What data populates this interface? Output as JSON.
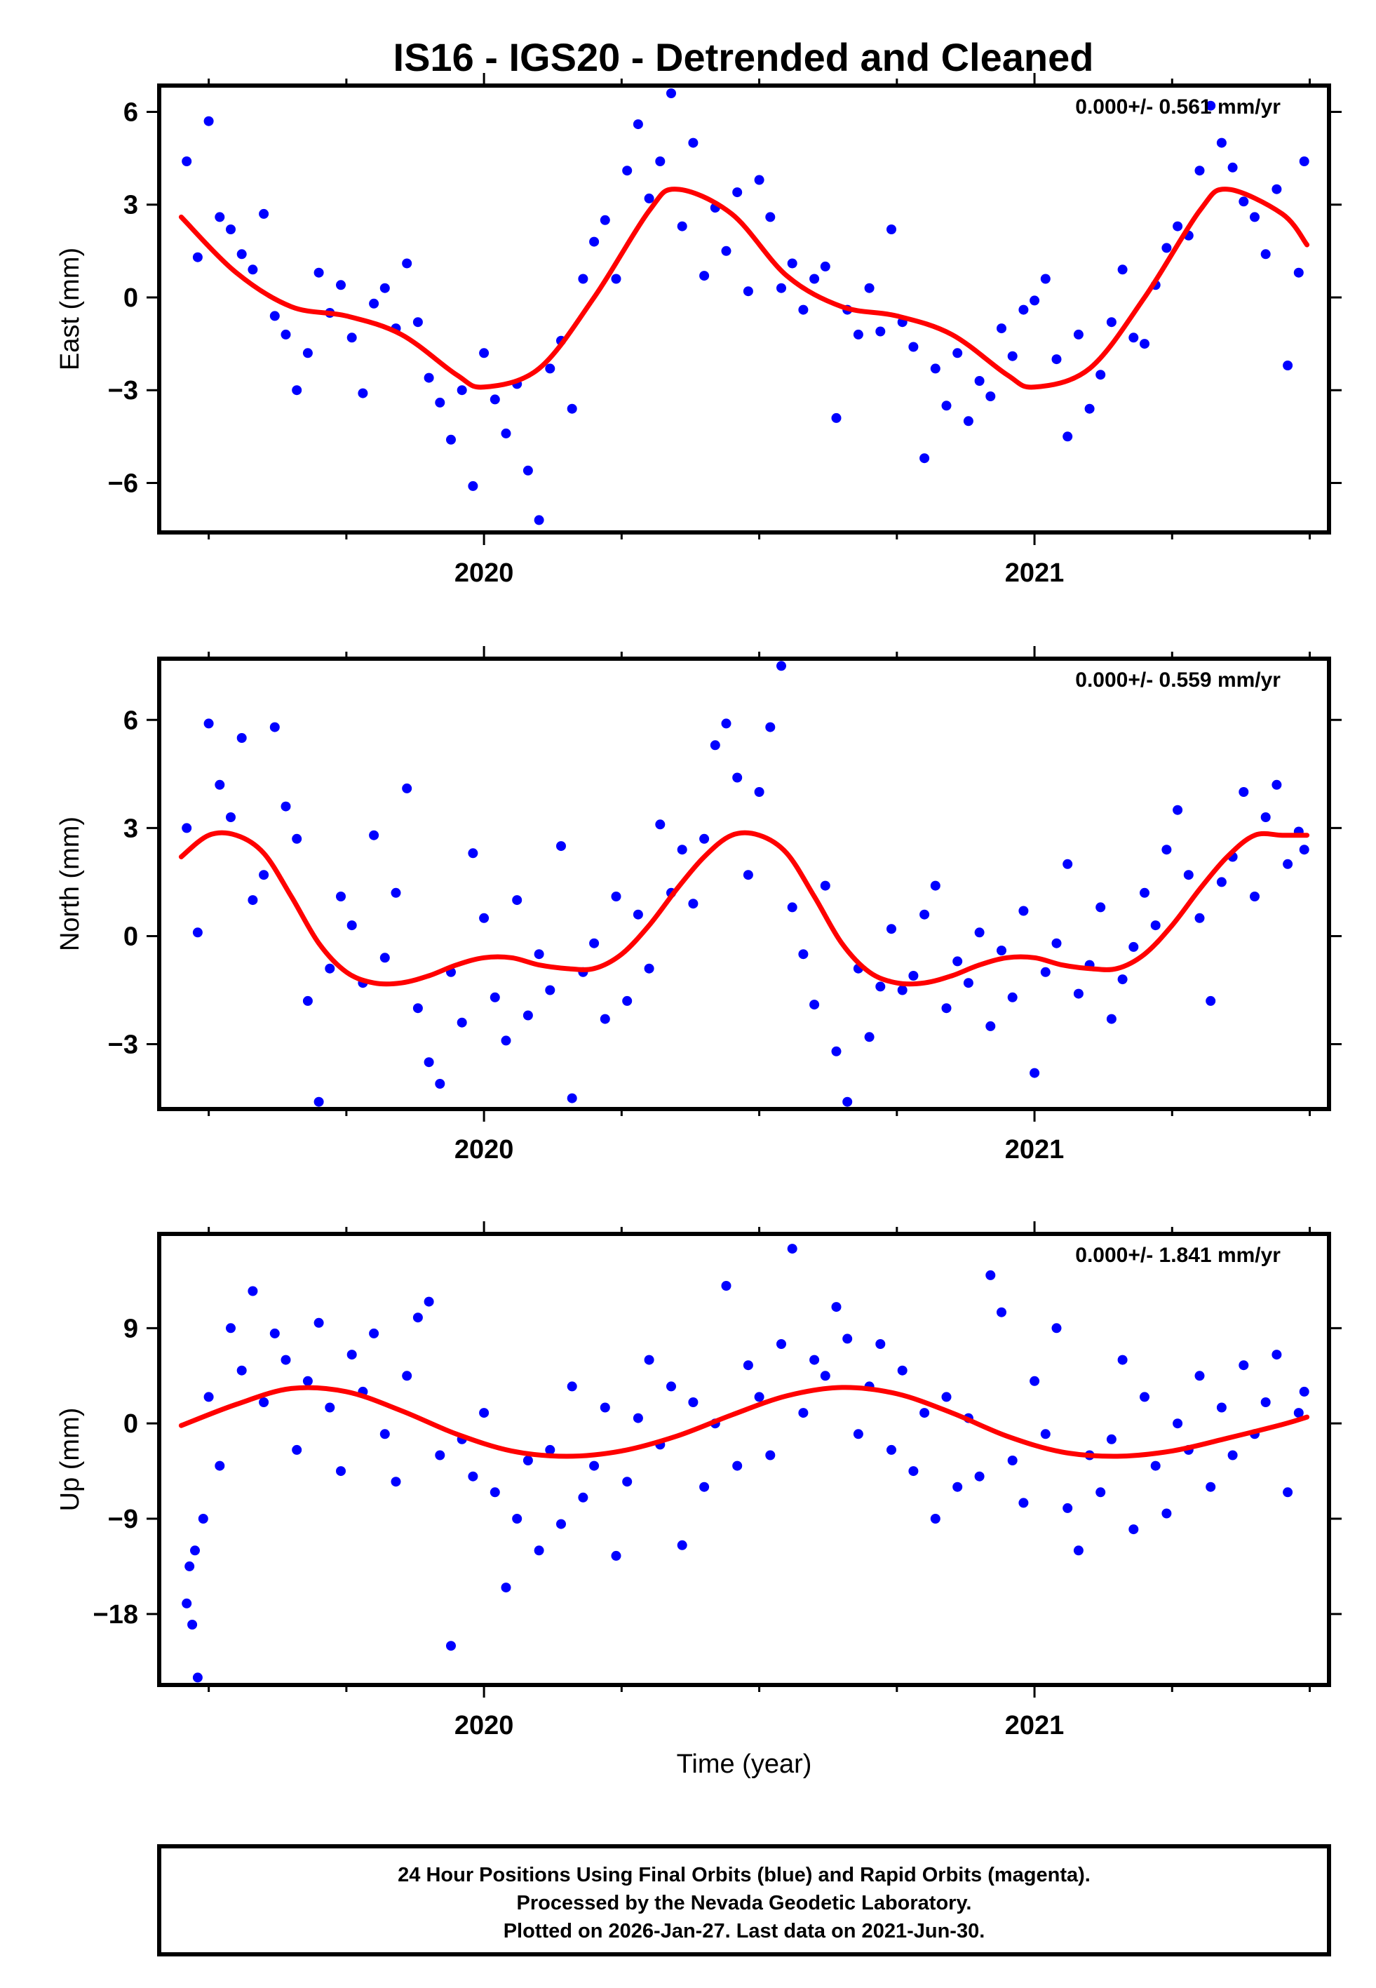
{
  "chart_data": {
    "type": "scatter",
    "title": "IS16 - IGS20 - Detrended and Cleaned",
    "xlabel": "Time (year)",
    "xlim": [
      2019.41,
      2021.535
    ],
    "x_tick_labels": [
      "2020",
      "2021"
    ],
    "x_major_ticks": [
      2020,
      2021
    ],
    "x_minor_ticks": [
      2019.5,
      2019.75,
      2020.25,
      2020.5,
      2020.75,
      2021.25,
      2021.5
    ],
    "data_range": [
      2019.45,
      2021.495
    ],
    "colors": {
      "points": "#0000ff",
      "fit": "#ff0000",
      "axis": "#000000"
    },
    "panels": [
      {
        "name": "east",
        "ylabel": "East (mm)",
        "ylim": [
          -7.6,
          6.85
        ],
        "yticks": [
          -6,
          -3,
          0,
          3,
          6
        ],
        "ytick_labels": [
          "−6",
          "−3",
          "0",
          "3",
          "6"
        ],
        "rate_label": "0.000+/- 0.561 mm/yr",
        "fit": {
          "x": [
            2019.45,
            2019.55,
            2019.65,
            2019.75,
            2019.85,
            2019.95,
            2020.0,
            2020.1,
            2020.2,
            2020.3,
            2020.35,
            2020.45,
            2020.55,
            2020.65,
            2020.75,
            2020.85,
            2020.95,
            2021.0,
            2021.1,
            2021.2,
            2021.3,
            2021.35,
            2021.45,
            2021.495
          ],
          "y": [
            2.6,
            0.8,
            -0.3,
            -0.6,
            -1.2,
            -2.5,
            -2.9,
            -2.3,
            0.0,
            2.8,
            3.5,
            2.7,
            0.7,
            -0.3,
            -0.6,
            -1.2,
            -2.5,
            -2.9,
            -2.3,
            0.0,
            2.8,
            3.5,
            2.7,
            1.7
          ]
        },
        "points": {
          "x": [
            2019.46,
            2019.48,
            2019.5,
            2019.52,
            2019.54,
            2019.56,
            2019.58,
            2019.6,
            2019.62,
            2019.64,
            2019.66,
            2019.68,
            2019.7,
            2019.72,
            2019.74,
            2019.76,
            2019.78,
            2019.8,
            2019.82,
            2019.84,
            2019.86,
            2019.88,
            2019.9,
            2019.92,
            2019.94,
            2019.96,
            2019.98,
            2020.0,
            2020.02,
            2020.04,
            2020.06,
            2020.08,
            2020.1,
            2020.12,
            2020.14,
            2020.16,
            2020.18,
            2020.2,
            2020.22,
            2020.24,
            2020.26,
            2020.28,
            2020.3,
            2020.32,
            2020.34,
            2020.36,
            2020.38,
            2020.4,
            2020.42,
            2020.44,
            2020.46,
            2020.48,
            2020.5,
            2020.52,
            2020.54,
            2020.56,
            2020.58,
            2020.6,
            2020.62,
            2020.64,
            2020.66,
            2020.68,
            2020.7,
            2020.72,
            2020.74,
            2020.76,
            2020.78,
            2020.8,
            2020.82,
            2020.84,
            2020.86,
            2020.88,
            2020.9,
            2020.92,
            2020.94,
            2020.96,
            2020.98,
            2021.0,
            2021.02,
            2021.04,
            2021.06,
            2021.08,
            2021.1,
            2021.12,
            2021.14,
            2021.16,
            2021.18,
            2021.2,
            2021.22,
            2021.24,
            2021.26,
            2021.28,
            2021.3,
            2021.32,
            2021.34,
            2021.36,
            2021.38,
            2021.4,
            2021.42,
            2021.44,
            2021.46,
            2021.48,
            2021.49
          ],
          "y": [
            4.4,
            1.3,
            5.7,
            2.6,
            2.2,
            1.4,
            0.9,
            2.7,
            -0.6,
            -1.2,
            -3.0,
            -1.8,
            0.8,
            -0.5,
            0.4,
            -1.3,
            -3.1,
            -0.2,
            0.3,
            -1.0,
            1.1,
            -0.8,
            -2.6,
            -3.4,
            -4.6,
            -3.0,
            -6.1,
            -1.8,
            -3.3,
            -4.4,
            -2.8,
            -5.6,
            -7.2,
            -2.3,
            -1.4,
            -3.6,
            0.6,
            1.8,
            2.5,
            0.6,
            4.1,
            5.6,
            3.2,
            4.4,
            6.6,
            2.3,
            5.0,
            0.7,
            2.9,
            1.5,
            3.4,
            0.2,
            3.8,
            2.6,
            0.3,
            1.1,
            -0.4,
            0.6,
            1.0,
            -3.9,
            -0.4,
            -1.2,
            0.3,
            -1.1,
            2.2,
            -0.8,
            -1.6,
            -5.2,
            -2.3,
            -3.5,
            -1.8,
            -4.0,
            -2.7,
            -3.2,
            -1.0,
            -1.9,
            -0.4,
            -0.1,
            0.6,
            -2.0,
            -4.5,
            -1.2,
            -3.6,
            -2.5,
            -0.8,
            0.9,
            -1.3,
            -1.5,
            0.4,
            1.6,
            2.3,
            2.0,
            4.1,
            6.2,
            5.0,
            4.2,
            3.1,
            2.6,
            1.4,
            3.5,
            -2.2,
            0.8,
            4.4
          ]
        }
      },
      {
        "name": "north",
        "ylabel": "North (mm)",
        "ylim": [
          -4.8,
          7.7
        ],
        "yticks": [
          -3,
          0,
          3,
          6
        ],
        "ytick_labels": [
          "−3",
          "0",
          "3",
          "6"
        ],
        "rate_label": "0.000+/- 0.559 mm/yr",
        "fit": {
          "x": [
            2019.45,
            2019.5,
            2019.55,
            2019.6,
            2019.65,
            2019.7,
            2019.75,
            2019.8,
            2019.85,
            2019.9,
            2019.95,
            2020.0,
            2020.05,
            2020.1,
            2020.15,
            2020.2,
            2020.25,
            2020.3,
            2020.35,
            2020.4,
            2020.45,
            2020.5,
            2020.55,
            2020.6,
            2020.65,
            2020.7,
            2020.75,
            2020.8,
            2020.85,
            2020.9,
            2020.95,
            2021.0,
            2021.05,
            2021.1,
            2021.15,
            2021.2,
            2021.25,
            2021.3,
            2021.35,
            2021.4,
            2021.45,
            2021.495
          ],
          "y": [
            2.2,
            2.8,
            2.8,
            2.3,
            1.1,
            -0.2,
            -1.0,
            -1.3,
            -1.3,
            -1.1,
            -0.8,
            -0.6,
            -0.6,
            -0.8,
            -0.9,
            -0.9,
            -0.5,
            0.3,
            1.3,
            2.2,
            2.8,
            2.8,
            2.3,
            1.1,
            -0.2,
            -1.0,
            -1.3,
            -1.3,
            -1.1,
            -0.8,
            -0.6,
            -0.6,
            -0.8,
            -0.9,
            -0.9,
            -0.5,
            0.3,
            1.3,
            2.2,
            2.8,
            2.8,
            2.8
          ]
        },
        "points": {
          "x": [
            2019.46,
            2019.48,
            2019.5,
            2019.52,
            2019.54,
            2019.56,
            2019.58,
            2019.6,
            2019.62,
            2019.64,
            2019.66,
            2019.68,
            2019.7,
            2019.72,
            2019.74,
            2019.76,
            2019.78,
            2019.8,
            2019.82,
            2019.84,
            2019.86,
            2019.88,
            2019.9,
            2019.92,
            2019.94,
            2019.96,
            2019.98,
            2020.0,
            2020.02,
            2020.04,
            2020.06,
            2020.08,
            2020.1,
            2020.12,
            2020.14,
            2020.16,
            2020.18,
            2020.2,
            2020.22,
            2020.24,
            2020.26,
            2020.28,
            2020.3,
            2020.32,
            2020.34,
            2020.36,
            2020.38,
            2020.4,
            2020.42,
            2020.44,
            2020.46,
            2020.48,
            2020.5,
            2020.52,
            2020.54,
            2020.56,
            2020.58,
            2020.6,
            2020.62,
            2020.64,
            2020.66,
            2020.68,
            2020.7,
            2020.72,
            2020.74,
            2020.76,
            2020.78,
            2020.8,
            2020.82,
            2020.84,
            2020.86,
            2020.88,
            2020.9,
            2020.92,
            2020.94,
            2020.96,
            2020.98,
            2021.0,
            2021.02,
            2021.04,
            2021.06,
            2021.08,
            2021.1,
            2021.12,
            2021.14,
            2021.16,
            2021.18,
            2021.2,
            2021.22,
            2021.24,
            2021.26,
            2021.28,
            2021.3,
            2021.32,
            2021.34,
            2021.36,
            2021.38,
            2021.4,
            2021.42,
            2021.44,
            2021.46,
            2021.48,
            2021.49
          ],
          "y": [
            3.0,
            0.1,
            5.9,
            4.2,
            3.3,
            5.5,
            1.0,
            1.7,
            5.8,
            3.6,
            2.7,
            -1.8,
            -4.6,
            -0.9,
            1.1,
            0.3,
            -1.3,
            2.8,
            -0.6,
            1.2,
            4.1,
            -2.0,
            -3.5,
            -4.1,
            -1.0,
            -2.4,
            2.3,
            0.5,
            -1.7,
            -2.9,
            1.0,
            -2.2,
            -0.5,
            -1.5,
            2.5,
            -4.5,
            -1.0,
            -0.2,
            -2.3,
            1.1,
            -1.8,
            0.6,
            -0.9,
            3.1,
            1.2,
            2.4,
            0.9,
            2.7,
            5.3,
            5.9,
            4.4,
            1.7,
            4.0,
            5.8,
            7.5,
            0.8,
            -0.5,
            -1.9,
            1.4,
            -3.2,
            -4.6,
            -0.9,
            -2.8,
            -1.4,
            0.2,
            -1.5,
            -1.1,
            0.6,
            1.4,
            -2.0,
            -0.7,
            -1.3,
            0.1,
            -2.5,
            -0.4,
            -1.7,
            0.7,
            -3.8,
            -1.0,
            -0.2,
            2.0,
            -1.6,
            -0.8,
            0.8,
            -2.3,
            -1.2,
            -0.3,
            1.2,
            0.3,
            2.4,
            3.5,
            1.7,
            0.5,
            -1.8,
            1.5,
            2.2,
            4.0,
            1.1,
            3.3,
            4.2,
            2.0,
            2.9,
            2.4
          ]
        }
      },
      {
        "name": "up",
        "ylabel": "Up (mm)",
        "ylim": [
          -24.7,
          17.9
        ],
        "yticks": [
          -18,
          -9,
          0,
          9
        ],
        "ytick_labels": [
          "−18",
          "−9",
          "0",
          "9"
        ],
        "rate_label": "0.000+/- 1.841 mm/yr",
        "fit": {
          "x": [
            2019.45,
            2019.55,
            2019.65,
            2019.75,
            2019.85,
            2019.95,
            2020.05,
            2020.15,
            2020.25,
            2020.35,
            2020.45,
            2020.55,
            2020.65,
            2020.75,
            2020.85,
            2020.95,
            2021.05,
            2021.15,
            2021.25,
            2021.35,
            2021.45,
            2021.495
          ],
          "y": [
            -0.2,
            1.8,
            3.3,
            3.0,
            1.2,
            -1.0,
            -2.6,
            -3.1,
            -2.6,
            -1.2,
            0.8,
            2.6,
            3.4,
            2.8,
            1.0,
            -1.2,
            -2.7,
            -3.1,
            -2.6,
            -1.4,
            -0.1,
            0.6
          ]
        },
        "points": {
          "x": [
            2019.46,
            2019.465,
            2019.47,
            2019.475,
            2019.48,
            2019.49,
            2019.5,
            2019.52,
            2019.54,
            2019.56,
            2019.58,
            2019.6,
            2019.62,
            2019.64,
            2019.66,
            2019.68,
            2019.7,
            2019.72,
            2019.74,
            2019.76,
            2019.78,
            2019.8,
            2019.82,
            2019.84,
            2019.86,
            2019.88,
            2019.9,
            2019.92,
            2019.94,
            2019.96,
            2019.98,
            2020.0,
            2020.02,
            2020.04,
            2020.06,
            2020.08,
            2020.1,
            2020.12,
            2020.14,
            2020.16,
            2020.18,
            2020.2,
            2020.22,
            2020.24,
            2020.26,
            2020.28,
            2020.3,
            2020.32,
            2020.34,
            2020.36,
            2020.38,
            2020.4,
            2020.42,
            2020.44,
            2020.46,
            2020.48,
            2020.5,
            2020.52,
            2020.54,
            2020.56,
            2020.58,
            2020.6,
            2020.62,
            2020.64,
            2020.66,
            2020.68,
            2020.7,
            2020.72,
            2020.74,
            2020.76,
            2020.78,
            2020.8,
            2020.82,
            2020.84,
            2020.86,
            2020.88,
            2020.9,
            2020.92,
            2020.94,
            2020.96,
            2020.98,
            2021.0,
            2021.02,
            2021.04,
            2021.06,
            2021.08,
            2021.1,
            2021.12,
            2021.14,
            2021.16,
            2021.18,
            2021.2,
            2021.22,
            2021.24,
            2021.26,
            2021.28,
            2021.3,
            2021.32,
            2021.34,
            2021.36,
            2021.38,
            2021.4,
            2021.42,
            2021.44,
            2021.46,
            2021.48,
            2021.49
          ],
          "y": [
            -17.0,
            -13.5,
            -19.0,
            -12.0,
            -24.0,
            -9.0,
            2.5,
            -4.0,
            9.0,
            5.0,
            12.5,
            2.0,
            8.5,
            6.0,
            -2.5,
            4.0,
            9.5,
            1.5,
            -4.5,
            6.5,
            3.0,
            8.5,
            -1.0,
            -5.5,
            4.5,
            10.0,
            11.5,
            -3.0,
            -21.0,
            -1.5,
            -5.0,
            1.0,
            -6.5,
            -15.5,
            -9.0,
            -3.5,
            -12.0,
            -2.5,
            -9.5,
            3.5,
            -7.0,
            -4.0,
            1.5,
            -12.5,
            -5.5,
            0.5,
            6.0,
            -2.0,
            3.5,
            -11.5,
            2.0,
            -6.0,
            0.0,
            13.0,
            -4.0,
            5.5,
            2.5,
            -3.0,
            7.5,
            16.5,
            1.0,
            6.0,
            4.5,
            11.0,
            8.0,
            -1.0,
            3.5,
            7.5,
            -2.5,
            5.0,
            -4.5,
            1.0,
            -9.0,
            2.5,
            -6.0,
            0.5,
            -5.0,
            14.0,
            10.5,
            -3.5,
            -7.5,
            4.0,
            -1.0,
            9.0,
            -8.0,
            -12.0,
            -3.0,
            -6.5,
            -1.5,
            6.0,
            -10.0,
            2.5,
            -4.0,
            -8.5,
            0.0,
            -2.5,
            4.5,
            -6.0,
            1.5,
            -3.0,
            5.5,
            -1.0,
            2.0,
            6.5,
            -6.5,
            1.0,
            3.0
          ]
        }
      }
    ]
  },
  "caption": {
    "line1": "24 Hour Positions Using Final Orbits (blue) and Rapid Orbits (magenta).",
    "line2": "Processed by the Nevada Geodetic Laboratory.",
    "line3": "Plotted on 2026-Jan-27. Last data on 2021-Jun-30."
  }
}
